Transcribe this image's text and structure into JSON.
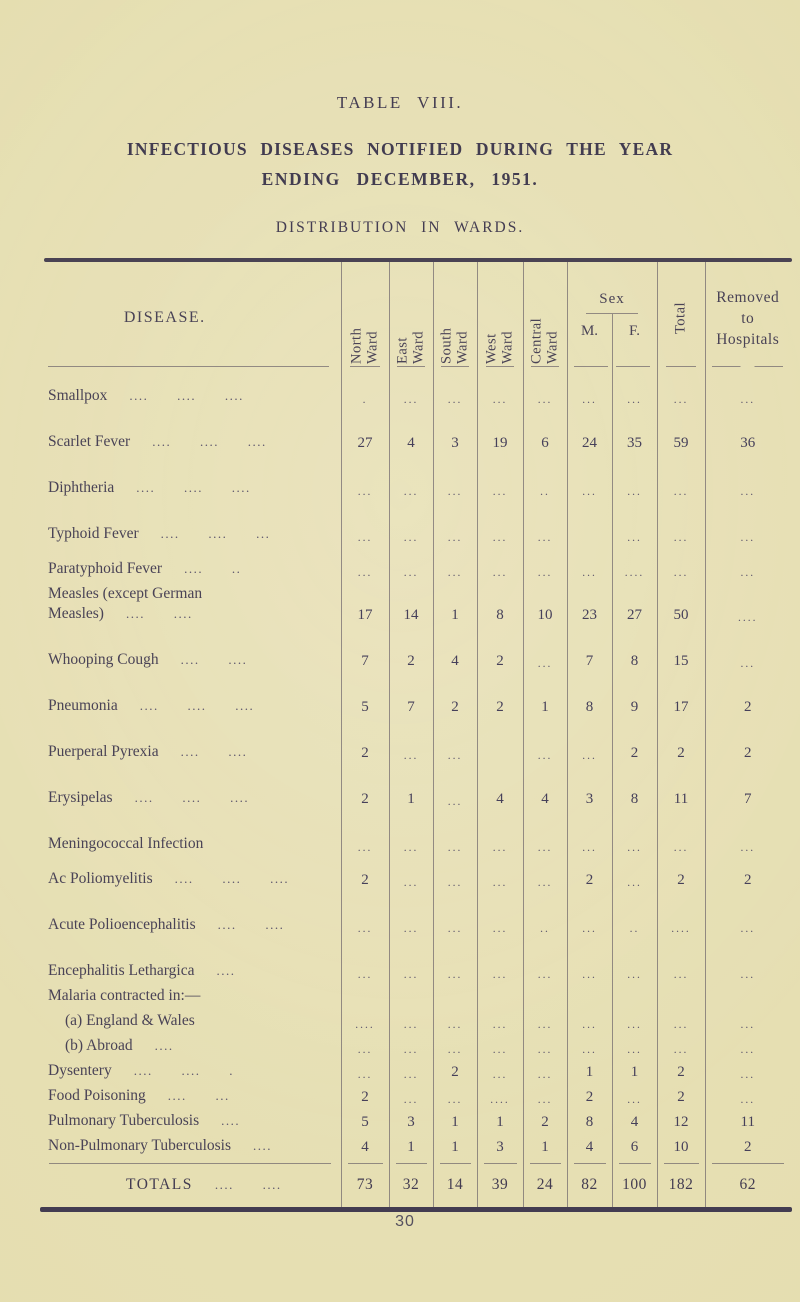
{
  "page": {
    "table_label": "TABLE VIII.",
    "title_line1": "INFECTIOUS DISEASES NOTIFIED DURING THE YEAR",
    "title_line2": "ENDING DECEMBER, 1951.",
    "subtitle": "DISTRIBUTION IN WARDS.",
    "page_number": "30"
  },
  "table": {
    "header": {
      "disease": "DISEASE.",
      "wards": [
        "North\nWard",
        "East\nWard",
        "South\nWard",
        "West\nWard",
        "Central\nWard"
      ],
      "sex": "Sex",
      "sex_m": "M.",
      "sex_f": "F.",
      "total": "Total",
      "removed": "Removed\nto\nHospitals"
    },
    "column_order": [
      "North Ward",
      "East Ward",
      "South Ward",
      "West Ward",
      "Central Ward",
      "Sex M.",
      "Sex F.",
      "Total",
      "Removed to Hospitals"
    ],
    "rows": [
      {
        "name": "Smallpox",
        "leaders": ".... .... ....",
        "cells": [
          ".",
          "...",
          "...",
          "...",
          "...",
          "...",
          "...",
          "...",
          "..."
        ],
        "sp": 1
      },
      {
        "name": "Scarlet Fever",
        "leaders": ".... .... ....",
        "cells": [
          "27",
          "4",
          "3",
          "19",
          "6",
          "24",
          "35",
          "59",
          "36"
        ],
        "sp": 2
      },
      {
        "name": "Diphtheria",
        "leaders": ".... .... ....",
        "cells": [
          "...",
          "...",
          "...",
          "...",
          "..",
          "...",
          "...",
          "...",
          "..."
        ],
        "sp": 2
      },
      {
        "name": "Typhoid Fever",
        "leaders": ".... .... ...",
        "cells": [
          "...",
          "...",
          "...",
          "...",
          "...",
          "",
          "...",
          "...",
          "..."
        ],
        "sp": 2
      },
      {
        "name": "Paratyphoid Fever",
        "leaders": ".... ..",
        "cells": [
          "...",
          "...",
          "...",
          "...",
          "...",
          "...",
          "....",
          "...",
          "..."
        ],
        "sp": 1
      },
      {
        "name": "Measles (except German",
        "name2": "Measles)",
        "leaders": ".... ....",
        "cells": [
          "17",
          "14",
          "1",
          "8",
          "10",
          "23",
          "27",
          "50",
          "...."
        ],
        "sp": 0
      },
      {
        "name": "Whooping Cough",
        "leaders": ".... ....",
        "cells": [
          "7",
          "2",
          "4",
          "2",
          "...",
          "7",
          "8",
          "15",
          "..."
        ],
        "sp": 2
      },
      {
        "name": "Pneumonia",
        "leaders": ".... .... ....",
        "cells": [
          "5",
          "7",
          "2",
          "2",
          "1",
          "8",
          "9",
          "17",
          "2"
        ],
        "sp": 2
      },
      {
        "name": "Puerperal Pyrexia",
        "leaders": ".... ....",
        "cells": [
          "2",
          "...",
          "...",
          "",
          "...",
          "...",
          "2",
          "2",
          "2"
        ],
        "sp": 2
      },
      {
        "name": "Erysipelas",
        "leaders": ".... .... ....",
        "cells": [
          "2",
          "1",
          "...",
          "4",
          "4",
          "3",
          "8",
          "11",
          "7"
        ],
        "sp": 2
      },
      {
        "name": "Meningococcal Infection",
        "leaders": "",
        "cells": [
          "...",
          "...",
          "...",
          "...",
          "...",
          "...",
          "...",
          "...",
          "..."
        ],
        "sp": 2
      },
      {
        "name": "Ac Poliomyelitis",
        "leaders": ".... .... ....",
        "cells": [
          "2",
          "...",
          "...",
          "...",
          "...",
          "2",
          "...",
          "2",
          "2"
        ],
        "sp": 1
      },
      {
        "name": "Acute Polioencephalitis",
        "leaders": ".... ....",
        "cells": [
          "...",
          "...",
          "...",
          "...",
          "..",
          "...",
          "..",
          "....",
          "..."
        ],
        "sp": 2
      },
      {
        "name": "Encephalitis Lethargica",
        "leaders": "....",
        "cells": [
          "...",
          "...",
          "...",
          "...",
          "...",
          "...",
          "...",
          "...",
          "..."
        ],
        "sp": 2
      },
      {
        "name": "Malaria contracted in:—",
        "leaders": "",
        "cells": [
          "",
          "",
          "",
          "",
          "",
          "",
          "",
          "",
          ""
        ],
        "sp": 0
      },
      {
        "name": "(a) England & Wales",
        "leaders": "",
        "cells": [
          "....",
          "...",
          "...",
          "...",
          "...",
          "...",
          "...",
          "...",
          "..."
        ],
        "sp": 0,
        "indent": true
      },
      {
        "name": "(b) Abroad",
        "leaders": "....",
        "cells": [
          "...",
          "...",
          "...",
          "...",
          "...",
          "...",
          "...",
          "...",
          "..."
        ],
        "sp": 0,
        "indent": true
      },
      {
        "name": "Dysentery",
        "leaders": ".... .... .",
        "cells": [
          "...",
          "...",
          "2",
          "...",
          "...",
          "1",
          "1",
          "2",
          "..."
        ],
        "sp": 0
      },
      {
        "name": "Food Poisoning",
        "leaders": ".... ...",
        "cells": [
          "2",
          "...",
          "...",
          "....",
          "...",
          "2",
          "...",
          "2",
          "..."
        ],
        "sp": 0
      },
      {
        "name": "Pulmonary Tuberculosis",
        "leaders": "....",
        "cells": [
          "5",
          "3",
          "1",
          "1",
          "2",
          "8",
          "4",
          "12",
          "11"
        ],
        "sp": 0
      },
      {
        "name": "Non-Pulmonary Tuberculosis",
        "leaders": "....",
        "cells": [
          "4",
          "1",
          "1",
          "3",
          "1",
          "4",
          "6",
          "10",
          "2"
        ],
        "sp": 0
      }
    ],
    "totals": {
      "label": "TOTALS",
      "leaders": ".... ....",
      "values": [
        "73",
        "32",
        "14",
        "39",
        "24",
        "82",
        "100",
        "182",
        "62"
      ]
    }
  }
}
